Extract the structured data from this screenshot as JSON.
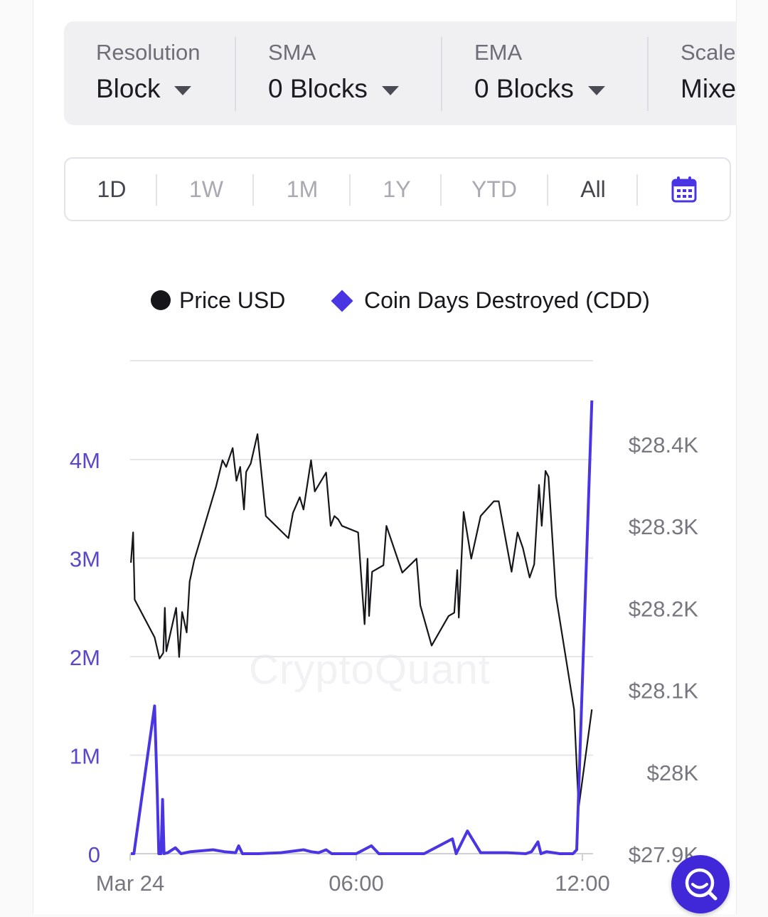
{
  "options": {
    "resolution": {
      "label": "Resolution",
      "value": "Block"
    },
    "sma": {
      "label": "SMA",
      "value": "0 Blocks"
    },
    "ema": {
      "label": "EMA",
      "value": "0 Blocks"
    },
    "scale": {
      "label": "Scale",
      "value": "Mixe"
    }
  },
  "range_buttons": [
    "1D",
    "1W",
    "1M",
    "1Y",
    "YTD",
    "All"
  ],
  "legend": {
    "price": "Price USD",
    "cdd": "Coin Days Destroyed (CDD)"
  },
  "watermark": "CryptoQuant",
  "colors": {
    "price_line": "#15151a",
    "cdd_line": "#4a35e3",
    "left_axis_text": "#5a48c6",
    "right_axis_text": "#777780",
    "grid": "#e6e6ea",
    "accent": "#4027d8"
  },
  "icons": {
    "calendar": "calendar-icon",
    "search": "search-icon"
  },
  "chart_data": {
    "type": "line",
    "title": "",
    "xlabel": "",
    "ylabel": "",
    "x_ticks": [
      "Mar 24",
      "06:00",
      "12:00"
    ],
    "x_range_hours": [
      0,
      12.25
    ],
    "left_axis": {
      "series": "Coin Days Destroyed (CDD)",
      "ticks": [
        "0",
        "1M",
        "2M",
        "3M",
        "4M"
      ],
      "range": [
        0,
        4000000
      ]
    },
    "right_axis": {
      "series": "Price USD",
      "ticks": [
        "$27.9K",
        "$28K",
        "$28.1K",
        "$28.2K",
        "$28.3K",
        "$28.4K"
      ],
      "range": [
        27900,
        28400
      ]
    },
    "grid": true,
    "legend_position": "top",
    "series": [
      {
        "name": "Price USD",
        "axis": "right",
        "points": [
          [
            0.02,
            28255
          ],
          [
            0.08,
            28292
          ],
          [
            0.12,
            28210
          ],
          [
            0.65,
            28164
          ],
          [
            0.78,
            28138
          ],
          [
            0.88,
            28145
          ],
          [
            0.92,
            28200
          ],
          [
            0.96,
            28147
          ],
          [
            1.22,
            28200
          ],
          [
            1.3,
            28140
          ],
          [
            1.38,
            28195
          ],
          [
            1.5,
            28170
          ],
          [
            1.58,
            28232
          ],
          [
            1.7,
            28258
          ],
          [
            2.28,
            28348
          ],
          [
            2.45,
            28380
          ],
          [
            2.55,
            28372
          ],
          [
            2.72,
            28395
          ],
          [
            2.82,
            28355
          ],
          [
            2.92,
            28372
          ],
          [
            3.02,
            28320
          ],
          [
            3.08,
            28366
          ],
          [
            3.2,
            28376
          ],
          [
            3.38,
            28412
          ],
          [
            3.6,
            28312
          ],
          [
            4.2,
            28285
          ],
          [
            4.32,
            28316
          ],
          [
            4.5,
            28335
          ],
          [
            4.6,
            28320
          ],
          [
            4.8,
            28380
          ],
          [
            4.9,
            28342
          ],
          [
            5.2,
            28365
          ],
          [
            5.32,
            28300
          ],
          [
            5.42,
            28312
          ],
          [
            5.52,
            28308
          ],
          [
            5.62,
            28300
          ],
          [
            6.05,
            28292
          ],
          [
            6.22,
            28180
          ],
          [
            6.3,
            28260
          ],
          [
            6.34,
            28190
          ],
          [
            6.42,
            28244
          ],
          [
            6.72,
            28252
          ],
          [
            6.8,
            28300
          ],
          [
            7.22,
            28243
          ],
          [
            7.6,
            28260
          ],
          [
            7.7,
            28203
          ],
          [
            8.0,
            28154
          ],
          [
            8.45,
            28190
          ],
          [
            8.6,
            28194
          ],
          [
            8.68,
            28246
          ],
          [
            8.72,
            28188
          ],
          [
            8.85,
            28317
          ],
          [
            9.05,
            28260
          ],
          [
            9.3,
            28312
          ],
          [
            9.65,
            28330
          ],
          [
            9.78,
            28330
          ],
          [
            10.12,
            28244
          ],
          [
            10.28,
            28292
          ],
          [
            10.42,
            28273
          ],
          [
            10.6,
            28237
          ],
          [
            10.72,
            28253
          ],
          [
            10.85,
            28350
          ],
          [
            10.92,
            28300
          ],
          [
            11.02,
            28367
          ],
          [
            11.1,
            28360
          ],
          [
            11.3,
            28214
          ],
          [
            11.78,
            28076
          ],
          [
            11.9,
            27956
          ],
          [
            12.25,
            28076
          ]
        ]
      },
      {
        "name": "Coin Days Destroyed (CDD)",
        "axis": "left",
        "points": [
          [
            0.02,
            0
          ],
          [
            0.1,
            0
          ],
          [
            0.65,
            1500000
          ],
          [
            0.72,
            600000
          ],
          [
            0.76,
            0
          ],
          [
            0.82,
            0
          ],
          [
            0.86,
            550000
          ],
          [
            0.9,
            0
          ],
          [
            1.0,
            10000
          ],
          [
            1.2,
            60000
          ],
          [
            1.35,
            0
          ],
          [
            1.6,
            20000
          ],
          [
            2.2,
            40000
          ],
          [
            2.5,
            20000
          ],
          [
            2.8,
            10000
          ],
          [
            2.88,
            80000
          ],
          [
            2.98,
            0
          ],
          [
            3.4,
            0
          ],
          [
            4.0,
            10000
          ],
          [
            4.6,
            40000
          ],
          [
            4.8,
            20000
          ],
          [
            5.0,
            10000
          ],
          [
            5.2,
            40000
          ],
          [
            5.35,
            0
          ],
          [
            6.0,
            0
          ],
          [
            6.4,
            80000
          ],
          [
            6.6,
            0
          ],
          [
            7.8,
            0
          ],
          [
            8.55,
            150000
          ],
          [
            8.65,
            0
          ],
          [
            8.95,
            230000
          ],
          [
            9.3,
            10000
          ],
          [
            10.0,
            10000
          ],
          [
            10.5,
            0
          ],
          [
            10.65,
            20000
          ],
          [
            10.82,
            120000
          ],
          [
            10.9,
            0
          ],
          [
            11.05,
            20000
          ],
          [
            11.4,
            0
          ],
          [
            11.75,
            0
          ],
          [
            11.85,
            40000
          ],
          [
            12.25,
            4600000
          ]
        ]
      }
    ]
  }
}
